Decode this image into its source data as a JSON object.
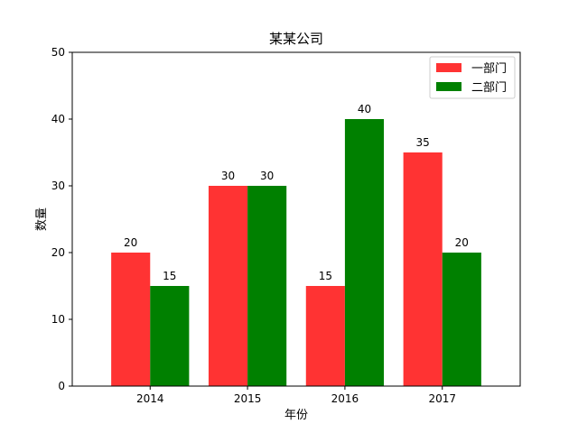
{
  "chart_data": {
    "type": "bar",
    "title": "某某公司",
    "xlabel": "年份",
    "ylabel": "数量",
    "categories": [
      "2014",
      "2015",
      "2016",
      "2017"
    ],
    "ylim": [
      0,
      50
    ],
    "yticks": [
      0,
      10,
      20,
      30,
      40,
      50
    ],
    "grid": false,
    "legend_position": "top-right",
    "series": [
      {
        "name": "一部门",
        "values": [
          20,
          30,
          15,
          35
        ],
        "color": "#ff3333"
      },
      {
        "name": "二部门",
        "values": [
          15,
          30,
          40,
          20
        ],
        "color": "#008000"
      }
    ]
  }
}
